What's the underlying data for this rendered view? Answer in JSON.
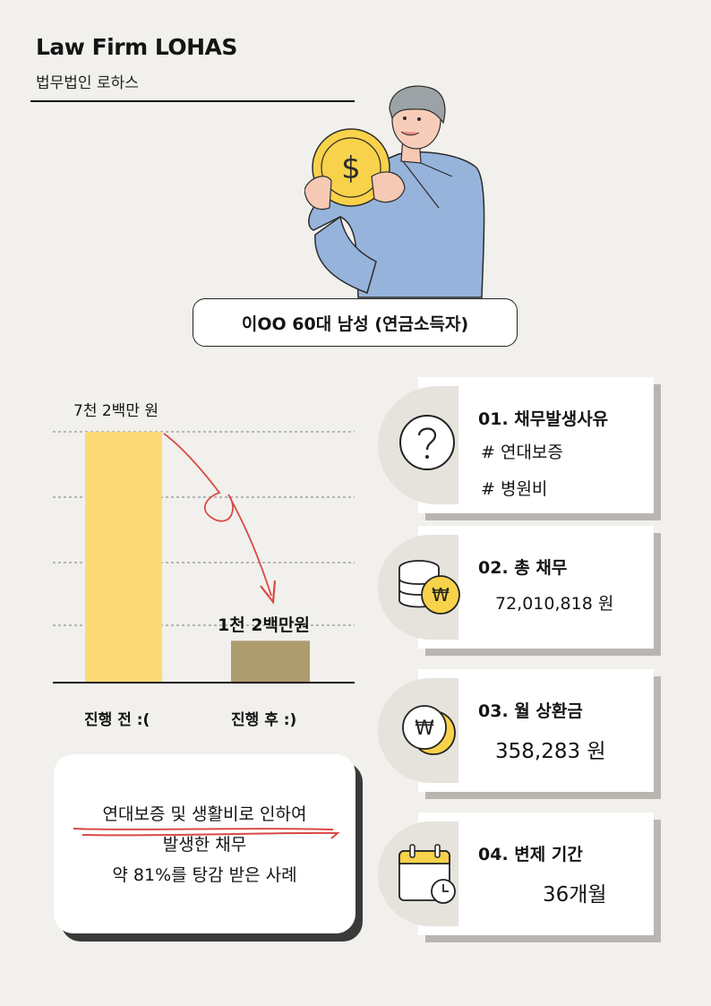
{
  "brand": {
    "title": "Law Firm LOHAS",
    "subtitle": "법무법인 로하스"
  },
  "client": {
    "label": "이OO 60대 남성 (연금소득자)"
  },
  "chart_data": {
    "type": "bar",
    "categories": [
      "진행 전 :(",
      "진행 후 :)"
    ],
    "values": [
      72,
      12
    ],
    "value_unit": "백만 원",
    "data_labels": [
      "7천 2백만 원",
      "1천 2백만원"
    ],
    "colors": [
      "#fdda76",
      "#ad9c6e"
    ],
    "ylim": [
      0,
      80
    ],
    "grid": true,
    "arrow_color": "#d94a46"
  },
  "cards": [
    {
      "title": "01. 채무발생사유",
      "lines": [
        "# 연대보증",
        "# 병원비"
      ],
      "icon": "question-icon"
    },
    {
      "title": "02. 총 채무",
      "lines": [
        "72,010,818 원"
      ],
      "icon": "coin-stack-icon"
    },
    {
      "title": "03. 월 상환금",
      "lines": [
        "358,283 원"
      ],
      "icon": "won-coins-icon"
    },
    {
      "title": "04. 변제 기간",
      "lines": [
        "36개월"
      ],
      "icon": "calendar-clock-icon"
    }
  ],
  "summary": {
    "lines": [
      "연대보증 및 생활비로 인하여",
      "발생한 채무",
      "약 81%를 탕감 받은 사례"
    ]
  },
  "colors": {
    "background": "#f2f0ec",
    "accent_yellow": "#fdda76",
    "accent_red": "#d94a46",
    "card_shadow": "#b9b6b1"
  }
}
